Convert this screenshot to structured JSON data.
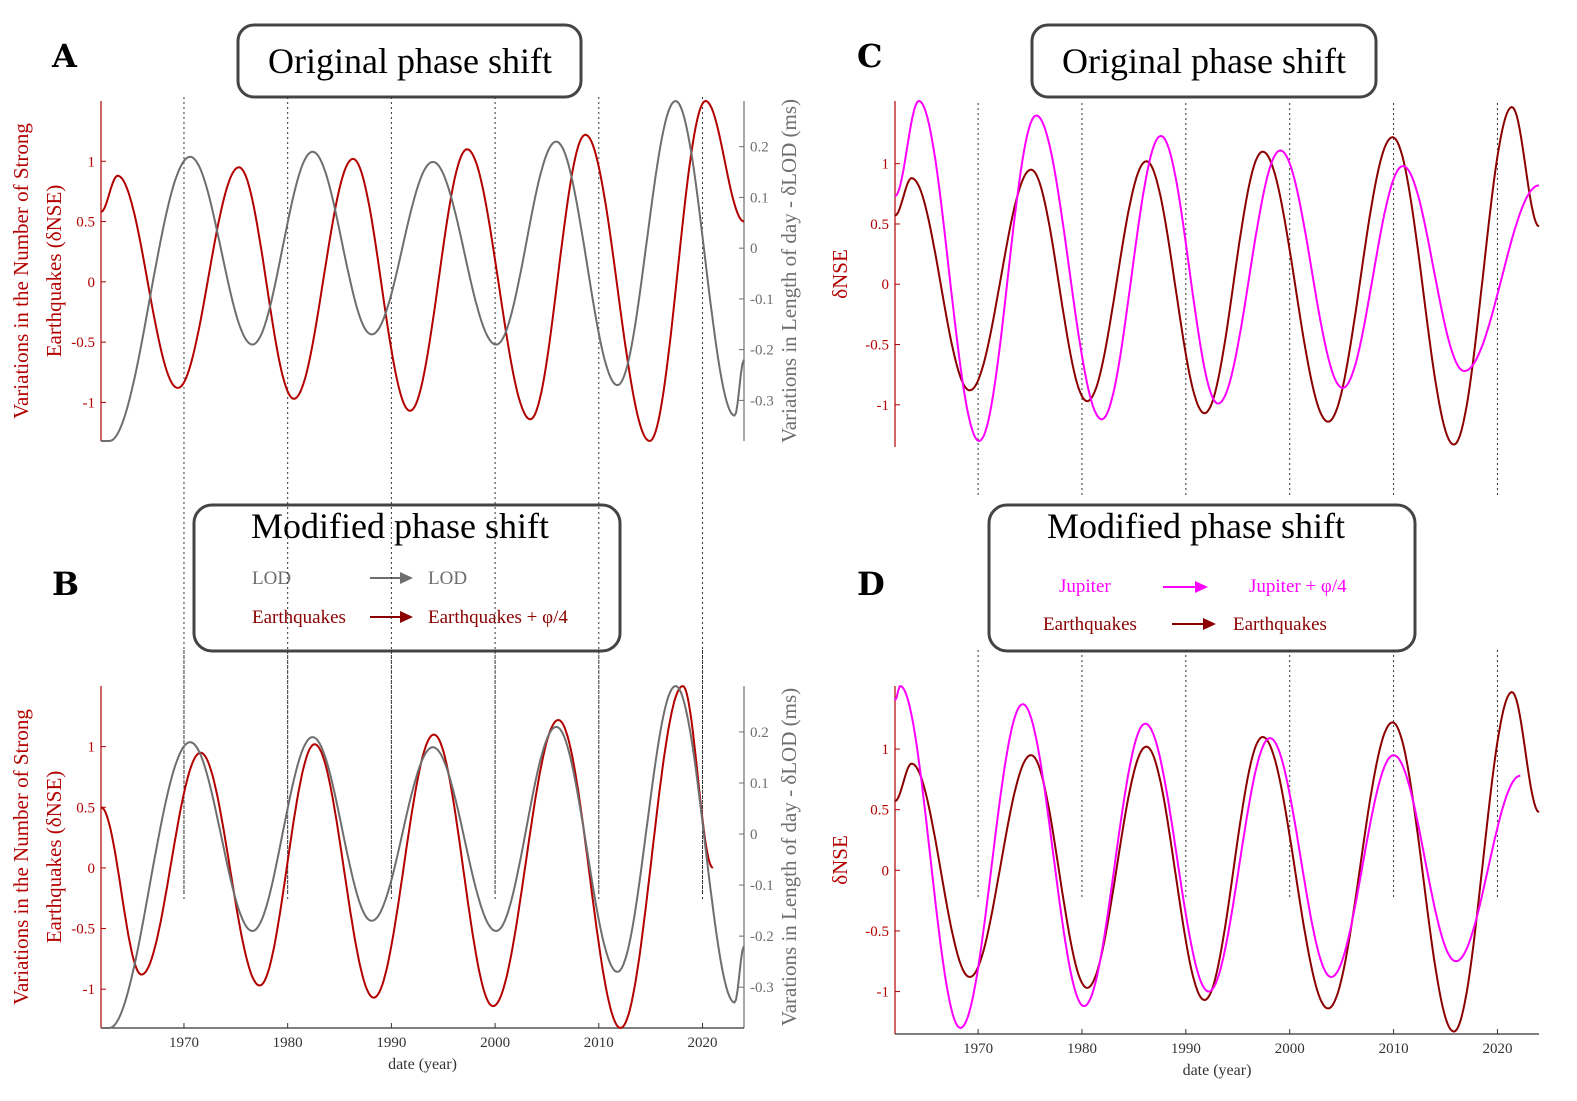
{
  "colors": {
    "earthquakes": "#b30000",
    "earthquakes_dark": "#8b0000",
    "lod": "#6e6e6e",
    "jupiter": "#ff00ff",
    "box_border": "#444444"
  },
  "panels": {
    "A": {
      "letter": "A",
      "title": "Original phase shift"
    },
    "B": {
      "letter": "B",
      "title": "Modified phase shift",
      "legend": [
        {
          "from": "LOD",
          "to": "LOD"
        },
        {
          "from": "Earthquakes",
          "to": "Earthquakes + φ/4"
        }
      ]
    },
    "C": {
      "letter": "C",
      "title": "Original phase shift"
    },
    "D": {
      "letter": "D",
      "title": "Modified phase shift",
      "legend": [
        {
          "from": "Jupiter",
          "to": "Jupiter + φ/4"
        },
        {
          "from": "Earthquakes",
          "to": "Earthquakes"
        }
      ]
    }
  },
  "chart_data": [
    {
      "panel": "A",
      "type": "line",
      "title": "Original phase shift",
      "xlabel": "",
      "ylabel": "Variations in the Number of Strong Earthquakes (δNSE)",
      "ylabel_right": "Variations in Length of day - δLOD (ms)",
      "xlim": [
        1962,
        2024
      ],
      "ylim": [
        -1.32,
        1.5
      ],
      "ylim_right": [
        -0.38,
        0.29
      ],
      "yticks": [
        -1,
        -0.5,
        0,
        0.5,
        1
      ],
      "yticks_right": [
        -0.3,
        -0.2,
        -0.1,
        0,
        0.1,
        0.2
      ],
      "grid_x": [
        1970,
        1980,
        1990,
        2000,
        2010,
        2020
      ],
      "series": [
        {
          "name": "Earthquakes",
          "axis": "left",
          "x": [
            1962,
            1963.6,
            1969.4,
            1975.3,
            1980.6,
            1986.3,
            1991.8,
            1997.3,
            2003.4,
            2008.7,
            2014.9,
            2020.3,
            2024
          ],
          "y": [
            0.58,
            0.88,
            -0.88,
            0.95,
            -0.97,
            1.02,
            -1.07,
            1.1,
            -1.14,
            1.22,
            -1.32,
            1.5,
            0.5
          ]
        },
        {
          "name": "LOD",
          "axis": "right",
          "x": [
            1962,
            1962.8,
            1970.6,
            1976.6,
            1982.4,
            1988.1,
            1994,
            2000.1,
            2005.9,
            2011.8,
            2017.4,
            2023.1,
            2024
          ],
          "y": [
            -0.38,
            -0.38,
            0.18,
            -0.19,
            0.19,
            -0.17,
            0.17,
            -0.19,
            0.21,
            -0.27,
            0.29,
            -0.33,
            -0.22
          ]
        }
      ]
    },
    {
      "panel": "B",
      "type": "line",
      "title": "Modified phase shift",
      "xlabel": "date (year)",
      "ylabel": "Variations in the Number of Strong Earthquakes (δNSE)",
      "ylabel_right": "Varations in Length of day - δLOD (ms)",
      "xlim": [
        1962,
        2024
      ],
      "ylim": [
        -1.32,
        1.5
      ],
      "ylim_right": [
        -0.38,
        0.29
      ],
      "yticks": [
        -1,
        -0.5,
        0,
        0.5,
        1
      ],
      "yticks_right": [
        -0.3,
        -0.2,
        -0.1,
        0,
        0.1,
        0.2
      ],
      "xticks": [
        1970,
        1980,
        1990,
        2000,
        2010,
        2020
      ],
      "grid_x": [
        1970,
        1980,
        1990,
        2000,
        2010,
        2020
      ],
      "series": [
        {
          "name": "Earthquakes + φ/4",
          "axis": "left",
          "x": [
            1962,
            1965.9,
            1971.6,
            1977.3,
            1982.6,
            1988.3,
            1994.1,
            1999.8,
            2006.1,
            2012.1,
            2018.1,
            2021
          ],
          "y": [
            0.5,
            -0.88,
            0.95,
            -0.97,
            1.02,
            -1.07,
            1.1,
            -1.14,
            1.22,
            -1.32,
            1.5,
            0.0
          ]
        },
        {
          "name": "LOD",
          "axis": "right",
          "x": [
            1962,
            1962.8,
            1970.6,
            1976.6,
            1982.4,
            1988.1,
            1994,
            2000.1,
            2005.9,
            2011.8,
            2017.4,
            2023.1,
            2024
          ],
          "y": [
            -0.38,
            -0.38,
            0.18,
            -0.19,
            0.19,
            -0.17,
            0.17,
            -0.19,
            0.21,
            -0.27,
            0.29,
            -0.33,
            -0.22
          ]
        }
      ]
    },
    {
      "panel": "C",
      "type": "line",
      "title": "Original phase shift",
      "xlabel": "",
      "ylabel": "δNSE",
      "xlim": [
        1962,
        2024
      ],
      "ylim": [
        -1.35,
        1.52
      ],
      "yticks": [
        -1,
        -0.5,
        0,
        0.5,
        1
      ],
      "grid_x": [
        1970,
        1980,
        1990,
        2000,
        2010,
        2020
      ],
      "series": [
        {
          "name": "Earthquakes",
          "axis": "left",
          "x": [
            1962,
            1963.6,
            1969.2,
            1975.1,
            1980.5,
            1986.2,
            1991.8,
            1997.4,
            2003.7,
            2009.9,
            2015.8,
            2021.4,
            2024
          ],
          "y": [
            0.57,
            0.88,
            -0.88,
            0.95,
            -0.97,
            1.02,
            -1.07,
            1.1,
            -1.14,
            1.22,
            -1.33,
            1.47,
            0.48
          ]
        },
        {
          "name": "Jupiter",
          "axis": "left",
          "x": [
            1962,
            1964.3,
            1970.1,
            1975.6,
            1981.9,
            1987.6,
            1993.1,
            1999.1,
            2005.1,
            2010.9,
            2016.8,
            2024
          ],
          "y": [
            0.73,
            1.52,
            -1.3,
            1.4,
            -1.12,
            1.23,
            -0.99,
            1.11,
            -0.86,
            0.98,
            -0.72,
            0.82
          ]
        }
      ]
    },
    {
      "panel": "D",
      "type": "line",
      "title": "Modified phase shift",
      "xlabel": "date (year)",
      "ylabel": "δNSE",
      "xlim": [
        1962,
        2024
      ],
      "ylim": [
        -1.35,
        1.52
      ],
      "yticks": [
        -1,
        -0.5,
        0,
        0.5,
        1
      ],
      "xticks": [
        1970,
        1980,
        1990,
        2000,
        2010,
        2020
      ],
      "grid_x": [
        1970,
        1980,
        1990,
        2000,
        2010,
        2020
      ],
      "series": [
        {
          "name": "Earthquakes",
          "axis": "left",
          "x": [
            1962,
            1963.6,
            1969.2,
            1975.1,
            1980.5,
            1986.2,
            1991.8,
            1997.4,
            2003.7,
            2009.9,
            2015.8,
            2021.4,
            2024
          ],
          "y": [
            0.57,
            0.88,
            -0.88,
            0.95,
            -0.97,
            1.02,
            -1.07,
            1.1,
            -1.14,
            1.22,
            -1.33,
            1.47,
            0.48
          ]
        },
        {
          "name": "Jupiter + φ/4",
          "axis": "left",
          "x": [
            1962,
            1962.5,
            1968.3,
            1974.3,
            1980.2,
            1986.1,
            1992.2,
            1998.1,
            2004.0,
            2010.0,
            2016.0,
            2022.2
          ],
          "y": [
            1.4,
            1.52,
            -1.3,
            1.37,
            -1.12,
            1.21,
            -1.0,
            1.09,
            -0.88,
            0.95,
            -0.75,
            0.78
          ]
        }
      ]
    }
  ]
}
